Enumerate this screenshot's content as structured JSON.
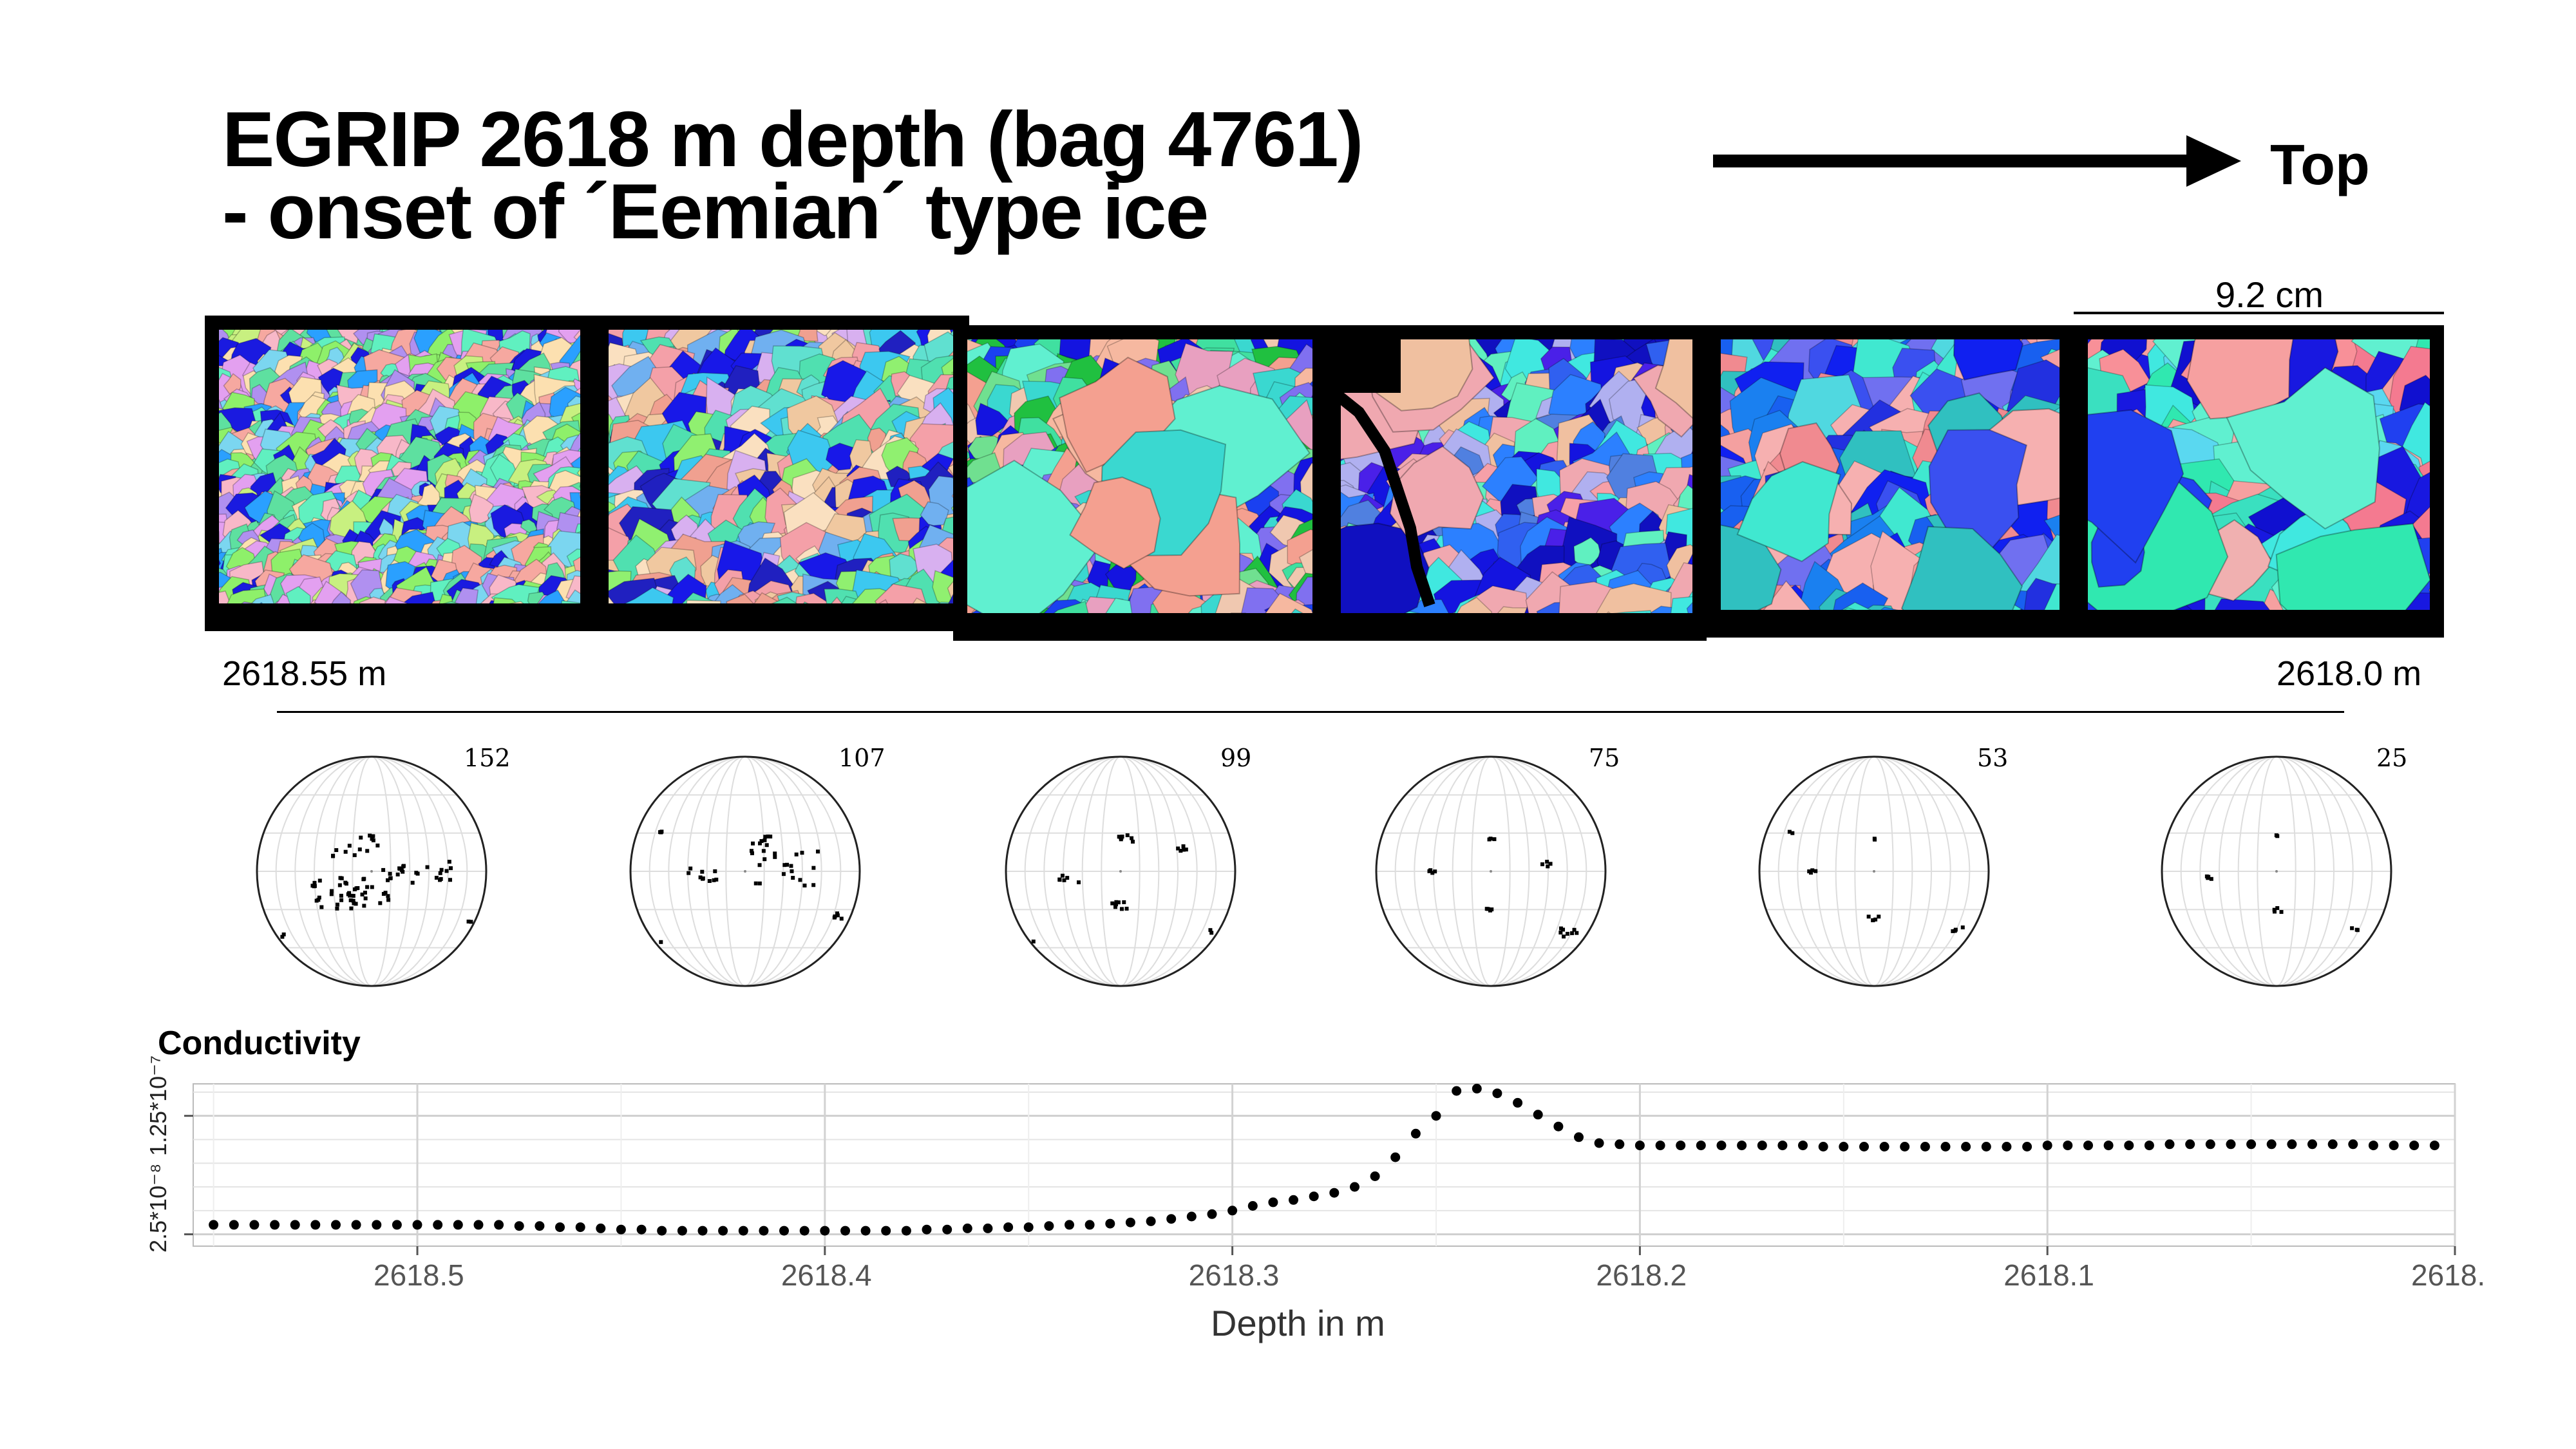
{
  "title": {
    "line1": "EGRIP 2618 m depth (bag 4761)",
    "line2": "- onset of ´Eemian´ type ice"
  },
  "direction_label": "Top",
  "scale_bar": {
    "label": "9.2 cm"
  },
  "depth_range": {
    "left": "2618.55 m",
    "right": "2618.0 m"
  },
  "stereonets": [
    {
      "n": "152"
    },
    {
      "n": "107"
    },
    {
      "n": "99"
    },
    {
      "n": "75"
    },
    {
      "n": "53"
    },
    {
      "n": "25"
    }
  ],
  "chart_data": {
    "type": "scatter",
    "title": "Conductivity",
    "xlabel": "Depth in m",
    "xlim": [
      2618.555,
      2618.0
    ],
    "x_reversed": true,
    "xticks": [
      "2618.5",
      "2618.4",
      "2618.3",
      "2618.2",
      "2618.1",
      "2618."
    ],
    "xtick_values": [
      2618.5,
      2618.4,
      2618.3,
      2618.2,
      2618.1,
      2618.0
    ],
    "yticks": [
      "2.5*10⁻⁸",
      "1.25*10⁻⁷"
    ],
    "ytick_values": [
      2.5e-08,
      1.25e-07
    ],
    "ylim": [
      1.5e-08,
      1.52e-07
    ],
    "grid": true,
    "marker_color": "#000000",
    "series": [
      {
        "points": [
          [
            2618.55,
            3.3e-08
          ],
          [
            2618.545,
            3.3e-08
          ],
          [
            2618.54,
            3.3e-08
          ],
          [
            2618.535,
            3.3e-08
          ],
          [
            2618.53,
            3.3e-08
          ],
          [
            2618.525,
            3.3e-08
          ],
          [
            2618.52,
            3.3e-08
          ],
          [
            2618.515,
            3.3e-08
          ],
          [
            2618.51,
            3.3e-08
          ],
          [
            2618.505,
            3.3e-08
          ],
          [
            2618.5,
            3.3e-08
          ],
          [
            2618.495,
            3.3e-08
          ],
          [
            2618.49,
            3.3e-08
          ],
          [
            2618.485,
            3.3e-08
          ],
          [
            2618.48,
            3.3e-08
          ],
          [
            2618.475,
            3.2e-08
          ],
          [
            2618.47,
            3.2e-08
          ],
          [
            2618.465,
            3.1e-08
          ],
          [
            2618.46,
            3.1e-08
          ],
          [
            2618.455,
            3e-08
          ],
          [
            2618.45,
            2.9e-08
          ],
          [
            2618.445,
            2.9e-08
          ],
          [
            2618.44,
            2.8e-08
          ],
          [
            2618.435,
            2.8e-08
          ],
          [
            2618.43,
            2.8e-08
          ],
          [
            2618.425,
            2.8e-08
          ],
          [
            2618.42,
            2.8e-08
          ],
          [
            2618.415,
            2.8e-08
          ],
          [
            2618.41,
            2.8e-08
          ],
          [
            2618.405,
            2.8e-08
          ],
          [
            2618.4,
            2.8e-08
          ],
          [
            2618.395,
            2.8e-08
          ],
          [
            2618.39,
            2.8e-08
          ],
          [
            2618.385,
            2.8e-08
          ],
          [
            2618.38,
            2.8e-08
          ],
          [
            2618.375,
            2.9e-08
          ],
          [
            2618.37,
            2.9e-08
          ],
          [
            2618.365,
            3e-08
          ],
          [
            2618.36,
            3e-08
          ],
          [
            2618.355,
            3.1e-08
          ],
          [
            2618.35,
            3.1e-08
          ],
          [
            2618.345,
            3.2e-08
          ],
          [
            2618.34,
            3.3e-08
          ],
          [
            2618.335,
            3.3e-08
          ],
          [
            2618.33,
            3.4e-08
          ],
          [
            2618.325,
            3.5e-08
          ],
          [
            2618.32,
            3.6e-08
          ],
          [
            2618.315,
            3.8e-08
          ],
          [
            2618.31,
            4e-08
          ],
          [
            2618.305,
            4.2e-08
          ],
          [
            2618.3,
            4.5e-08
          ],
          [
            2618.295,
            4.9e-08
          ],
          [
            2618.29,
            5.2e-08
          ],
          [
            2618.285,
            5.4e-08
          ],
          [
            2618.28,
            5.7e-08
          ],
          [
            2618.275,
            6e-08
          ],
          [
            2618.27,
            6.5e-08
          ],
          [
            2618.265,
            7.4e-08
          ],
          [
            2618.26,
            9e-08
          ],
          [
            2618.255,
            1.1e-07
          ],
          [
            2618.25,
            1.25e-07
          ],
          [
            2618.245,
            1.46e-07
          ],
          [
            2618.24,
            1.48e-07
          ],
          [
            2618.235,
            1.44e-07
          ],
          [
            2618.23,
            1.36e-07
          ],
          [
            2618.225,
            1.26e-07
          ],
          [
            2618.22,
            1.16e-07
          ],
          [
            2618.215,
            1.07e-07
          ],
          [
            2618.21,
            1.02e-07
          ],
          [
            2618.205,
            1.01e-07
          ],
          [
            2618.2,
            1e-07
          ],
          [
            2618.195,
            1e-07
          ],
          [
            2618.19,
            1e-07
          ],
          [
            2618.185,
            1e-07
          ],
          [
            2618.18,
            1e-07
          ],
          [
            2618.175,
            1e-07
          ],
          [
            2618.17,
            1e-07
          ],
          [
            2618.165,
            1e-07
          ],
          [
            2618.16,
            1e-07
          ],
          [
            2618.155,
            9.9e-08
          ],
          [
            2618.15,
            9.9e-08
          ],
          [
            2618.145,
            9.9e-08
          ],
          [
            2618.14,
            9.9e-08
          ],
          [
            2618.135,
            9.9e-08
          ],
          [
            2618.13,
            9.9e-08
          ],
          [
            2618.125,
            9.9e-08
          ],
          [
            2618.12,
            9.9e-08
          ],
          [
            2618.115,
            9.9e-08
          ],
          [
            2618.11,
            9.9e-08
          ],
          [
            2618.105,
            9.9e-08
          ],
          [
            2618.1,
            1e-07
          ],
          [
            2618.095,
            1e-07
          ],
          [
            2618.09,
            1e-07
          ],
          [
            2618.085,
            1e-07
          ],
          [
            2618.08,
            1e-07
          ],
          [
            2618.075,
            1e-07
          ],
          [
            2618.07,
            1.01e-07
          ],
          [
            2618.065,
            1.01e-07
          ],
          [
            2618.06,
            1.01e-07
          ],
          [
            2618.055,
            1.01e-07
          ],
          [
            2618.05,
            1.01e-07
          ],
          [
            2618.045,
            1.01e-07
          ],
          [
            2618.04,
            1.01e-07
          ],
          [
            2618.035,
            1.01e-07
          ],
          [
            2618.03,
            1.01e-07
          ],
          [
            2618.025,
            1.01e-07
          ],
          [
            2618.02,
            1e-07
          ],
          [
            2618.015,
            1e-07
          ],
          [
            2618.01,
            1e-07
          ],
          [
            2618.005,
            1e-07
          ]
        ]
      }
    ]
  }
}
